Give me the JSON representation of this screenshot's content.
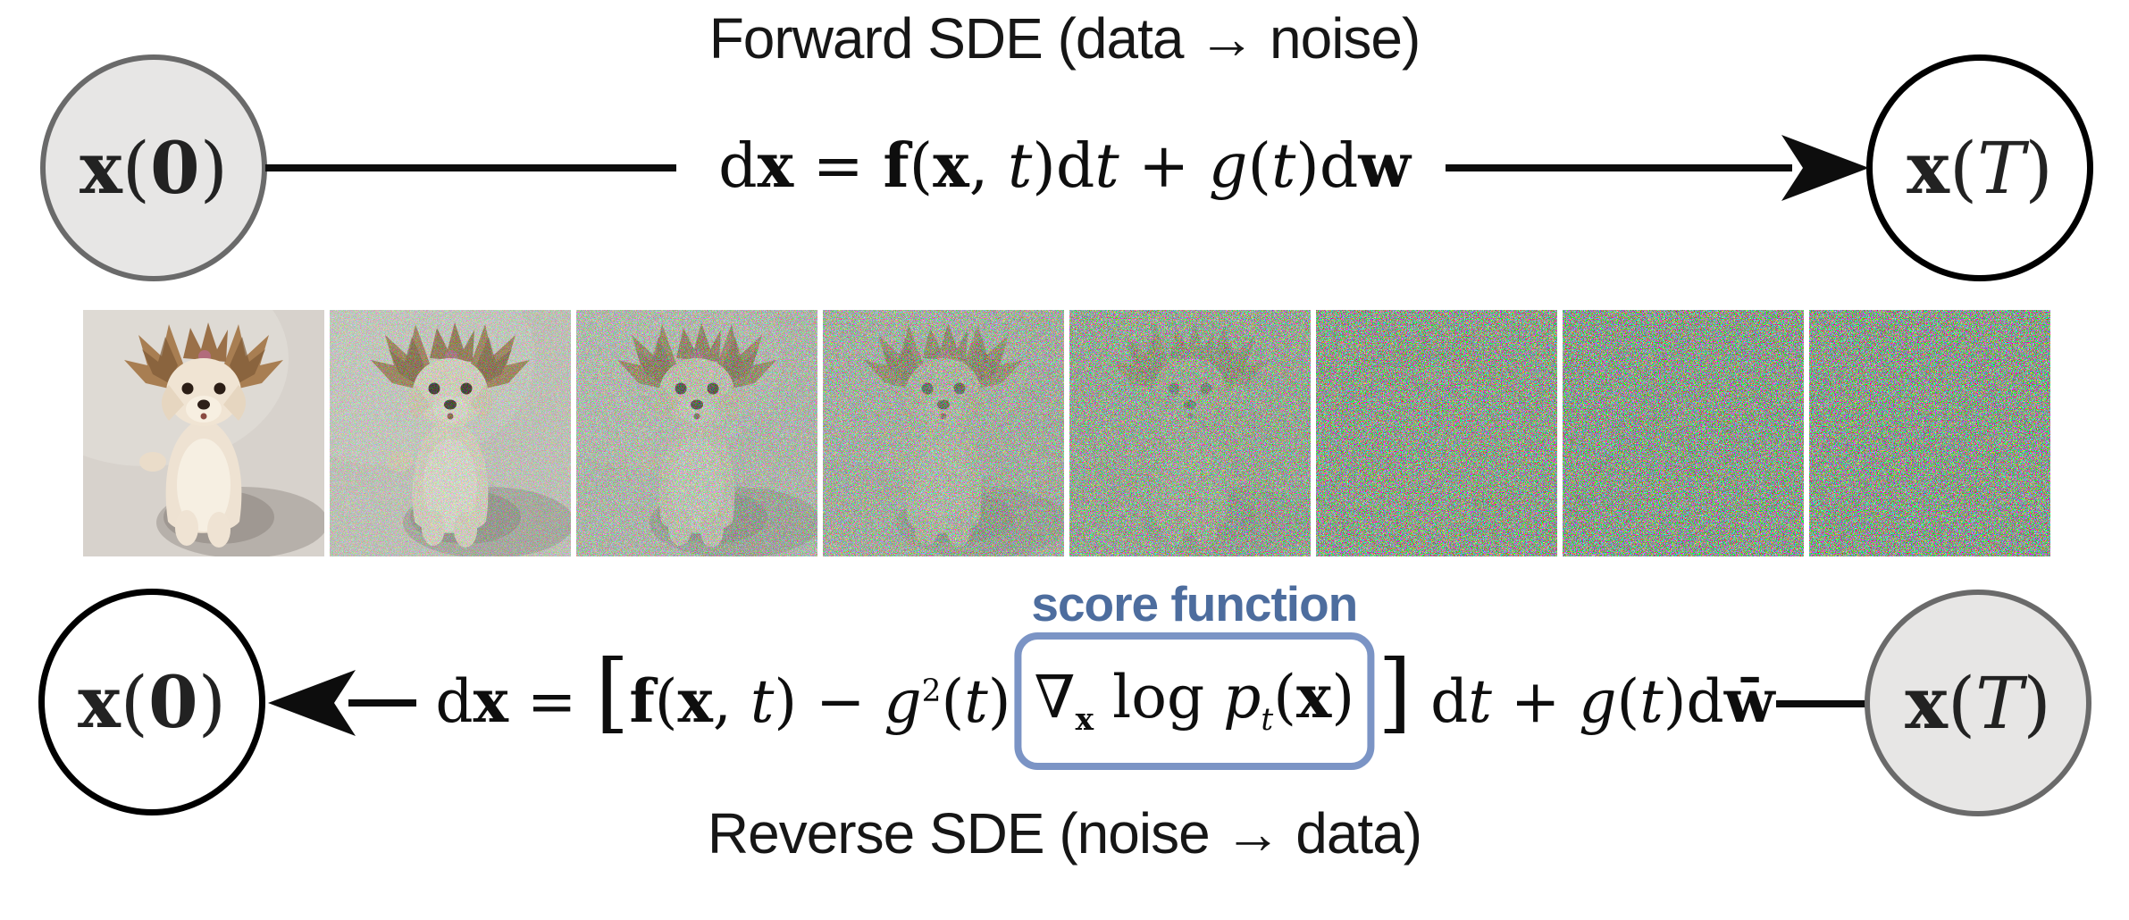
{
  "diagram": {
    "colors": {
      "score_blue": "#4d6d9e",
      "box_blue": "#7b94c5",
      "node_gray_fill": "#e7e6e5",
      "node_gray_border": "#6a6a6a",
      "line_black": "#0d0d0d",
      "title_black": "#161616"
    },
    "forward": {
      "title": "Forward SDE (data → noise)",
      "equation_text": "dx = f(x, t)dt + g(t)dw",
      "eq_tokens": [
        {
          "t": "d",
          "s": "rm"
        },
        {
          "t": "x",
          "s": "bf"
        },
        {
          "t": " = ",
          "s": "rm"
        },
        {
          "t": "f",
          "s": "bf"
        },
        {
          "t": "(",
          "s": "rm"
        },
        {
          "t": "x",
          "s": "bf"
        },
        {
          "t": ", ",
          "s": "rm"
        },
        {
          "t": "t",
          "s": "it"
        },
        {
          "t": ")d",
          "s": "rm"
        },
        {
          "t": "t",
          "s": "it"
        },
        {
          "t": " + ",
          "s": "rm"
        },
        {
          "t": "g",
          "s": "it"
        },
        {
          "t": "(",
          "s": "rm"
        },
        {
          "t": "t",
          "s": "it"
        },
        {
          "t": ")d",
          "s": "rm"
        },
        {
          "t": "w",
          "s": "bf"
        }
      ]
    },
    "reverse": {
      "title": "Reverse SDE (noise → data)",
      "score_label": "score function",
      "equation_text": "dx = [f(x, t) − g²(t)∇x log pt(x)] dt + g(t)dw̄",
      "pre_tokens": [
        {
          "t": "d",
          "s": "rm"
        },
        {
          "t": "x",
          "s": "bf"
        },
        {
          "t": " = ",
          "s": "rm"
        },
        {
          "t": "[",
          "s": "big"
        },
        {
          "t": "f",
          "s": "bf"
        },
        {
          "t": "(",
          "s": "rm"
        },
        {
          "t": "x",
          "s": "bf"
        },
        {
          "t": ", ",
          "s": "rm"
        },
        {
          "t": "t",
          "s": "it"
        },
        {
          "t": ") − ",
          "s": "rm"
        },
        {
          "t": "g",
          "s": "it"
        },
        {
          "t": "2",
          "s": "sup"
        },
        {
          "t": "(",
          "s": "rm"
        },
        {
          "t": "t",
          "s": "it"
        },
        {
          "t": ")",
          "s": "rm"
        }
      ],
      "boxed_tokens": [
        {
          "t": "∇",
          "s": "rm"
        },
        {
          "t": "x",
          "s": "sub bf"
        },
        {
          "t": " log ",
          "s": "rm"
        },
        {
          "t": "p",
          "s": "it"
        },
        {
          "t": "t",
          "s": "sub it"
        },
        {
          "t": "(",
          "s": "rm"
        },
        {
          "t": "x",
          "s": "bf"
        },
        {
          "t": ")",
          "s": "rm"
        }
      ],
      "post_tokens": [
        {
          "t": "]",
          "s": "big"
        },
        {
          "t": " d",
          "s": "rm"
        },
        {
          "t": "t",
          "s": "it"
        },
        {
          "t": " + ",
          "s": "rm"
        },
        {
          "t": "g",
          "s": "it"
        },
        {
          "t": "(",
          "s": "rm"
        },
        {
          "t": "t",
          "s": "it"
        },
        {
          "t": ")d",
          "s": "rm"
        },
        {
          "t": "w̄",
          "s": "bf"
        }
      ]
    },
    "nodes": {
      "x0_text": "x(0)",
      "xT_text": "x(T)",
      "x0_tokens": [
        {
          "t": "x",
          "s": "bf"
        },
        {
          "t": "(",
          "s": "rm"
        },
        {
          "t": "0",
          "s": "bf"
        },
        {
          "t": ")",
          "s": "rm"
        }
      ],
      "xT_tokens": [
        {
          "t": "x",
          "s": "bf"
        },
        {
          "t": "(",
          "s": "rm"
        },
        {
          "t": "T",
          "s": "it"
        },
        {
          "t": ")",
          "s": "rm"
        }
      ]
    },
    "strip": {
      "description": "photo of a small terrier dog progressively corrupted into colorful noise, left to right",
      "frame_count": 8,
      "frames": [
        {
          "noise_level": 0
        },
        {
          "noise_level": 0.35
        },
        {
          "noise_level": 0.55
        },
        {
          "noise_level": 0.7
        },
        {
          "noise_level": 0.85
        },
        {
          "noise_level": 0.97
        },
        {
          "noise_level": 1
        },
        {
          "noise_level": 1
        }
      ]
    }
  }
}
